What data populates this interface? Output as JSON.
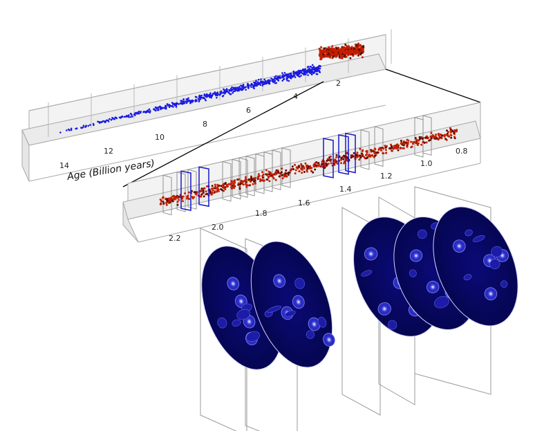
{
  "upper_axis": {
    "title": "Age (Billion years)",
    "ticks": [
      "14",
      "12",
      "10",
      "8",
      "6",
      "4",
      "2"
    ]
  },
  "lower_axis": {
    "ticks": [
      "2.2",
      "2.0",
      "1.8",
      "1.6",
      "1.4",
      "1.2",
      "1.0",
      "0.8"
    ]
  },
  "colors": {
    "blue_points": "#1a1ae0",
    "red_points": "#c42000",
    "dark_red_points": "#5a0b00",
    "slice_highlight": "#1414c8",
    "slice_plain": "#888888",
    "map_background": "#06064f",
    "box_fill": "#f0f0f0",
    "box_edge": "#9a9a9a"
  }
}
